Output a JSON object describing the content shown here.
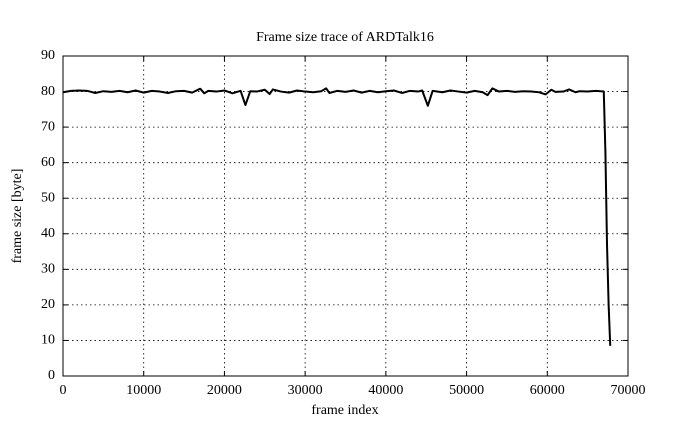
{
  "chart_data": {
    "type": "line",
    "title": "Frame size trace of ARDTalk16",
    "xlabel": "frame index",
    "ylabel": "frame size [byte]",
    "xlim": [
      0,
      70000
    ],
    "ylim": [
      0,
      90
    ],
    "xticks": [
      0,
      10000,
      20000,
      30000,
      40000,
      50000,
      60000,
      70000
    ],
    "yticks": [
      0,
      10,
      20,
      30,
      40,
      50,
      60,
      70,
      80,
      90
    ],
    "grid": true,
    "x": [
      0,
      1000,
      2000,
      3000,
      4000,
      5000,
      6000,
      7000,
      8000,
      9000,
      10000,
      11000,
      12000,
      13000,
      14000,
      15000,
      16000,
      17000,
      17500,
      18000,
      19000,
      20000,
      21000,
      22000,
      22600,
      23200,
      24000,
      25000,
      25600,
      26000,
      27000,
      28000,
      29000,
      30000,
      31000,
      32000,
      32600,
      33000,
      34000,
      35000,
      36000,
      37000,
      38000,
      39000,
      40000,
      41000,
      42000,
      43000,
      44000,
      44500,
      45200,
      45800,
      47000,
      48000,
      49000,
      50000,
      51000,
      52000,
      52600,
      53200,
      54000,
      55000,
      56000,
      57000,
      58000,
      59000,
      59800,
      60500,
      61000,
      62000,
      62700,
      63500,
      64000,
      65000,
      66000,
      67000,
      67200,
      67400,
      67600,
      67800
    ],
    "series": [
      {
        "name": "frame size",
        "color": "#000000",
        "values": [
          79.8,
          80.2,
          80.3,
          80.2,
          79.6,
          80.1,
          79.9,
          80.2,
          79.8,
          80.3,
          79.7,
          80.2,
          80.0,
          79.6,
          80.1,
          80.2,
          79.7,
          80.8,
          79.5,
          80.2,
          80.0,
          80.3,
          79.5,
          80.2,
          76.2,
          80.1,
          80.0,
          80.5,
          79.3,
          80.6,
          80.0,
          79.7,
          80.3,
          80.0,
          79.8,
          80.1,
          80.9,
          79.6,
          80.2,
          79.9,
          80.3,
          79.7,
          80.2,
          79.8,
          80.1,
          80.3,
          79.6,
          80.2,
          80.0,
          80.3,
          76.0,
          80.2,
          79.8,
          80.3,
          80.0,
          79.7,
          80.2,
          79.8,
          79.0,
          80.9,
          80.0,
          80.2,
          79.9,
          80.1,
          80.0,
          79.8,
          79.2,
          80.5,
          79.9,
          80.0,
          80.6,
          79.8,
          80.1,
          80.0,
          80.2,
          80.0,
          63,
          37,
          20,
          8.5
        ]
      }
    ]
  }
}
